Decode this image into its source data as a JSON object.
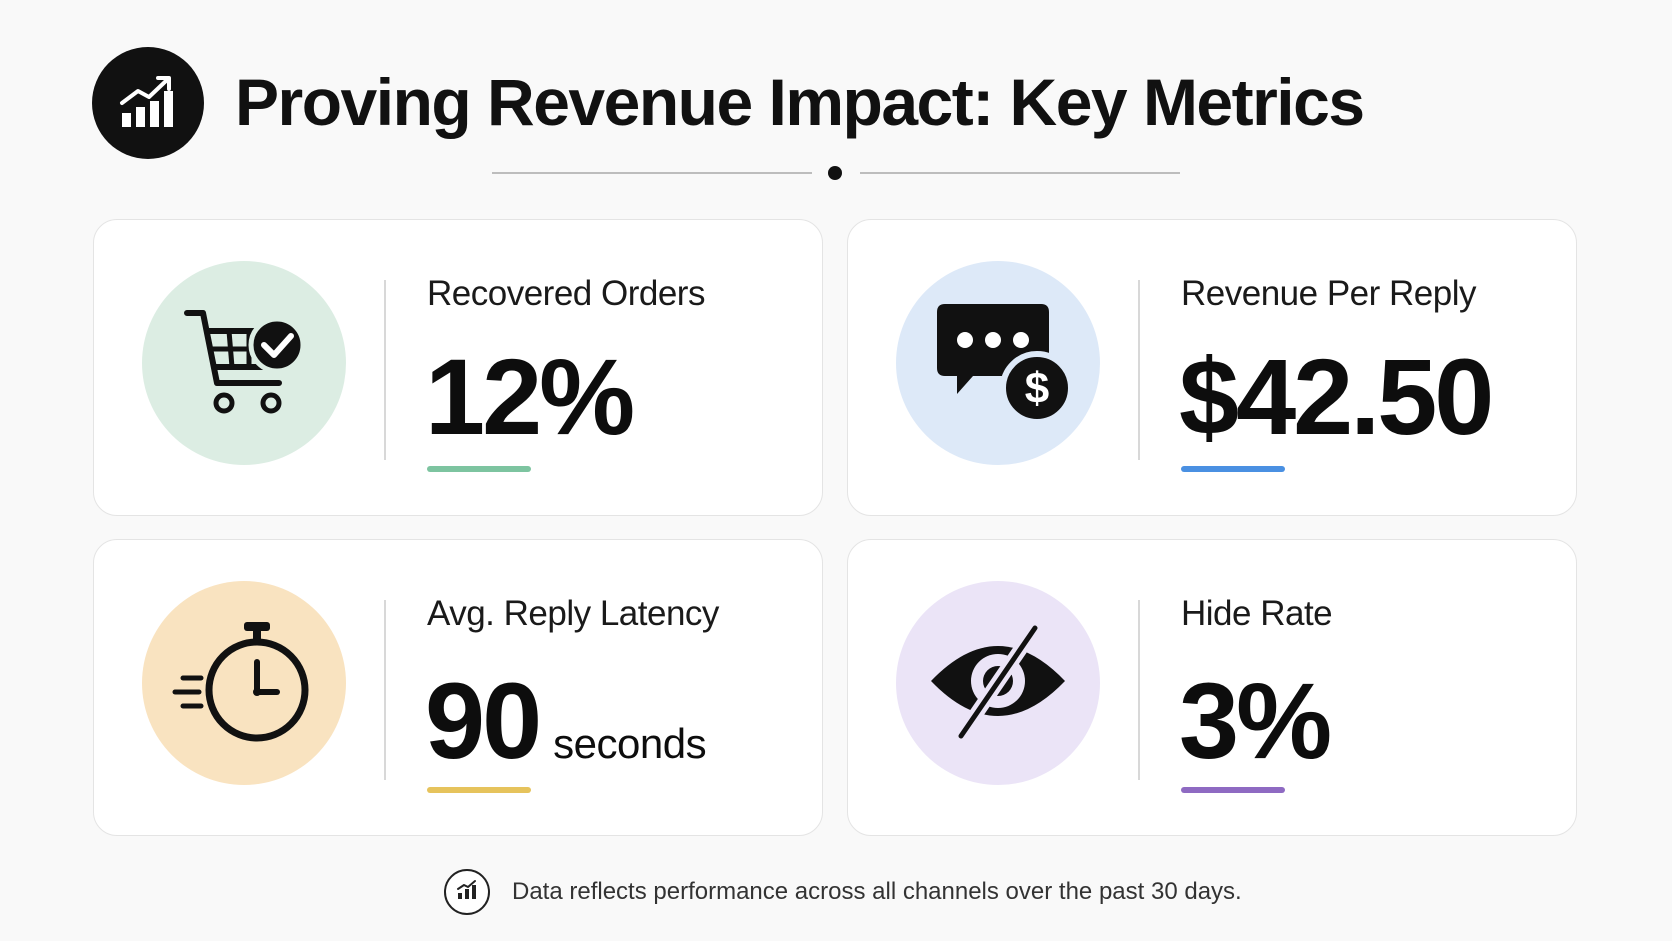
{
  "header": {
    "title": "Proving Revenue Impact: Key Metrics",
    "icon": "chart-trend-up-icon"
  },
  "metrics": [
    {
      "label": "Recovered Orders",
      "value": "12%",
      "unit": "",
      "icon": "cart-check-icon",
      "icon_bg": "#dcede3",
      "accent": "#7dc4a0"
    },
    {
      "label": "Revenue Per Reply",
      "value": "$42.50",
      "unit": "",
      "icon": "chat-dollar-icon",
      "icon_bg": "#dde9f8",
      "accent": "#4a90e2"
    },
    {
      "label": "Avg. Reply Latency",
      "value": "90",
      "unit": "seconds",
      "icon": "stopwatch-icon",
      "icon_bg": "#f9e3c0",
      "accent": "#e6c35c"
    },
    {
      "label": "Hide Rate",
      "value": "3%",
      "unit": "",
      "icon": "eye-off-icon",
      "icon_bg": "#ebe4f7",
      "accent": "#8e6ac2"
    }
  ],
  "footer": {
    "text": "Data reflects performance across all channels over the past 30 days.",
    "icon": "bar-chart-icon"
  }
}
